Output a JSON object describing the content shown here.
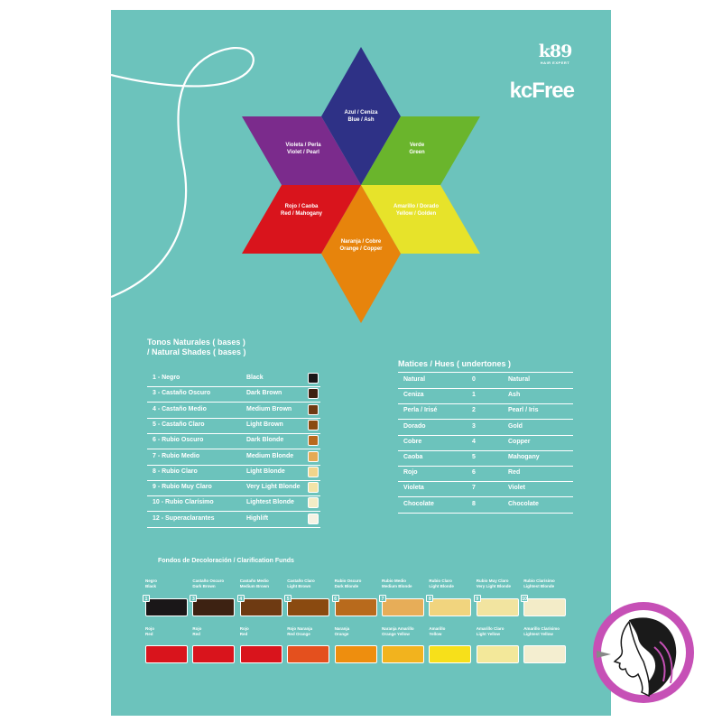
{
  "brand": {
    "logo_mark": "k89",
    "logo_tagline": "HAIR EXPERT",
    "product_name": "kcFree"
  },
  "star": {
    "segments": [
      {
        "id": "top",
        "label": "Azul / Ceniza\nBlue / Ash",
        "color": "#2e3186"
      },
      {
        "id": "upper-right",
        "label": "Verde\nGreen",
        "color": "#6ab52c"
      },
      {
        "id": "lower-right",
        "label": "Amarillo / Dorado\nYellow / Golden",
        "color": "#e7e32a"
      },
      {
        "id": "bottom",
        "label": "Naranja / Cobre\nOrange / Copper",
        "color": "#e7840c"
      },
      {
        "id": "lower-left",
        "label": "Rojo / Caoba\nRed / Mahogany",
        "color": "#d9141c"
      },
      {
        "id": "upper-left",
        "label": "Violeta / Perla\nViolet / Pearl",
        "color": "#7b2b8c"
      }
    ]
  },
  "natural_tones": {
    "title_es": "Tonos Naturales ( bases )",
    "title_en": "/ Natural Shades ( bases )",
    "rows": [
      {
        "code": "1 -",
        "es": "Negro",
        "en": "Black",
        "color": "#1a1718"
      },
      {
        "code": "3 -",
        "es": "Castaño Oscuro",
        "en": "Dark Brown",
        "color": "#3d2212"
      },
      {
        "code": "4 -",
        "es": "Castaño Medio",
        "en": "Medium Brown",
        "color": "#6e3a12"
      },
      {
        "code": "5 -",
        "es": "Castaño Claro",
        "en": "Light Brown",
        "color": "#8a4a10"
      },
      {
        "code": "6 -",
        "es": "Rubio Oscuro",
        "en": "Dark Blonde",
        "color": "#b86a1c"
      },
      {
        "code": "7 -",
        "es": "Rubio Medio",
        "en": "Medium Blonde",
        "color": "#e4aa55"
      },
      {
        "code": "8 -",
        "es": "Rubio Claro",
        "en": "Light Blonde",
        "color": "#f0d58c"
      },
      {
        "code": "9 -",
        "es": "Rubio Muy Claro",
        "en": "Very Light Blonde",
        "color": "#f2e4a8"
      },
      {
        "code": "10 -",
        "es": "Rubio Clarísimo",
        "en": "Lightest Blonde",
        "color": "#f3ecc6"
      },
      {
        "code": "12 -",
        "es": "Superaclarantes",
        "en": "Highlift",
        "color": "#f6f3e4"
      }
    ]
  },
  "undertones": {
    "title": "Matices / Hues ( undertones )",
    "rows": [
      {
        "es": "Natural",
        "num": "0",
        "en": "Natural"
      },
      {
        "es": "Ceniza",
        "num": "1",
        "en": "Ash"
      },
      {
        "es": "Perla / Irisé",
        "num": "2",
        "en": "Pearl / Iris"
      },
      {
        "es": "Dorado",
        "num": "3",
        "en": "Gold"
      },
      {
        "es": "Cobre",
        "num": "4",
        "en": "Copper"
      },
      {
        "es": "Caoba",
        "num": "5",
        "en": "Mahogany"
      },
      {
        "es": "Rojo",
        "num": "6",
        "en": "Red"
      },
      {
        "es": "Violeta",
        "num": "7",
        "en": "Violet"
      },
      {
        "es": "Chocolate",
        "num": "8",
        "en": "Chocolate"
      }
    ]
  },
  "funds": {
    "title": "Fondos de Decoloración / Clarification Funds",
    "row1": [
      {
        "num": "1",
        "es": "Negro",
        "en": "Black",
        "color": "#1a1718"
      },
      {
        "num": "3",
        "es": "Castaño Oscuro",
        "en": "Dark Brown",
        "color": "#3d2212"
      },
      {
        "num": "4",
        "es": "Castaño Medio",
        "en": "Medium Brown",
        "color": "#6e3a12"
      },
      {
        "num": "5",
        "es": "Castaño Claro",
        "en": "Light Brown",
        "color": "#8a4a10"
      },
      {
        "num": "6",
        "es": "Rubio Oscuro",
        "en": "Dark Blonde",
        "color": "#b86a1c"
      },
      {
        "num": "7",
        "es": "Rubio Medio",
        "en": "Medium Blonde",
        "color": "#e7ad58"
      },
      {
        "num": "8",
        "es": "Rubio Claro",
        "en": "Light Blonde",
        "color": "#f1d47e"
      },
      {
        "num": "9",
        "es": "Rubio Muy Claro",
        "en": "Very Light Blonde",
        "color": "#f2e4a0"
      },
      {
        "num": "10",
        "es": "Rubio Clarísimo",
        "en": "Lightest Blonde",
        "color": "#f3ecc8"
      }
    ],
    "row2": [
      {
        "es": "Rojo",
        "en": "Red",
        "color": "#d9141c"
      },
      {
        "es": "Rojo",
        "en": "Red",
        "color": "#d9141c"
      },
      {
        "es": "Rojo",
        "en": "Red",
        "color": "#d9141c"
      },
      {
        "es": "Rojo Naranja",
        "en": "Red Orange",
        "color": "#e4501e"
      },
      {
        "es": "Naranja",
        "en": "Orange",
        "color": "#ee8e0e"
      },
      {
        "es": "Naranja Amarillo",
        "en": "Orange Yellow",
        "color": "#f2b31e"
      },
      {
        "es": "Amarillo",
        "en": "Yellow",
        "color": "#f7e01a"
      },
      {
        "es": "Amarillo Claro",
        "en": "Light Yellow",
        "color": "#f3e89a"
      },
      {
        "es": "Amarillo Clarísimo",
        "en": "Lightest Yellow",
        "color": "#f4eed0"
      }
    ]
  },
  "colors": {
    "background": "#6cc3bc",
    "badge": "#c650b6"
  }
}
